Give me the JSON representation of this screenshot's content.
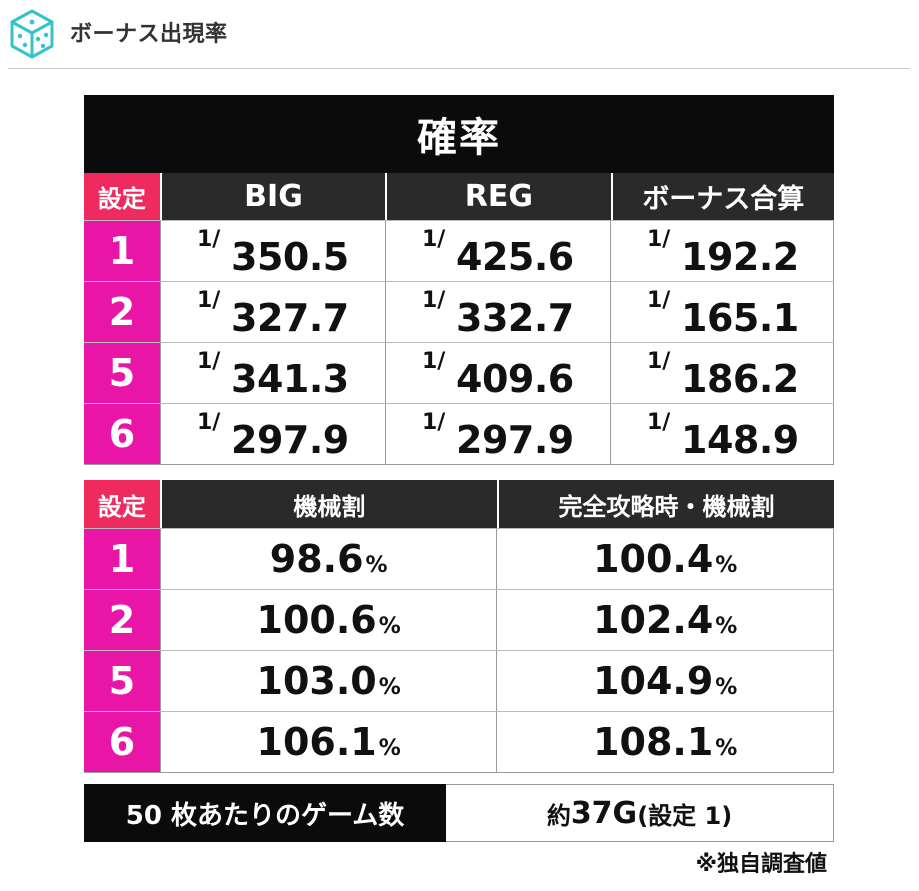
{
  "header": {
    "title": "ボーナス出現率",
    "icon": "dice-cube-icon",
    "accent": "#36c2cc"
  },
  "probability_table": {
    "title": "確率",
    "setting_header": "設定",
    "columns": [
      "BIG",
      "REG",
      "ボーナス合算"
    ],
    "fraction_prefix": "1/",
    "rows": [
      {
        "setting": "1",
        "values": [
          "350.5",
          "425.6",
          "192.2"
        ]
      },
      {
        "setting": "2",
        "values": [
          "327.7",
          "332.7",
          "165.1"
        ]
      },
      {
        "setting": "5",
        "values": [
          "341.3",
          "409.6",
          "186.2"
        ]
      },
      {
        "setting": "6",
        "values": [
          "297.9",
          "297.9",
          "148.9"
        ]
      }
    ]
  },
  "payout_table": {
    "setting_header": "設定",
    "columns": [
      "機械割",
      "完全攻略時・機械割"
    ],
    "unit": "%",
    "rows": [
      {
        "setting": "1",
        "values": [
          "98.6",
          "100.4"
        ]
      },
      {
        "setting": "2",
        "values": [
          "100.6",
          "102.4"
        ]
      },
      {
        "setting": "5",
        "values": [
          "103.0",
          "104.9"
        ]
      },
      {
        "setting": "6",
        "values": [
          "106.1",
          "108.1"
        ]
      }
    ]
  },
  "games_per_50": {
    "label": "50 枚あたりのゲーム数",
    "prefix": "約",
    "value": "37G",
    "suffix": "(設定 1)"
  },
  "footnote": "※独自調査値",
  "colors": {
    "setting_cell": "#e815a6",
    "setting_header": "#ee2a5e",
    "header_dark": "#0b0b0b"
  }
}
